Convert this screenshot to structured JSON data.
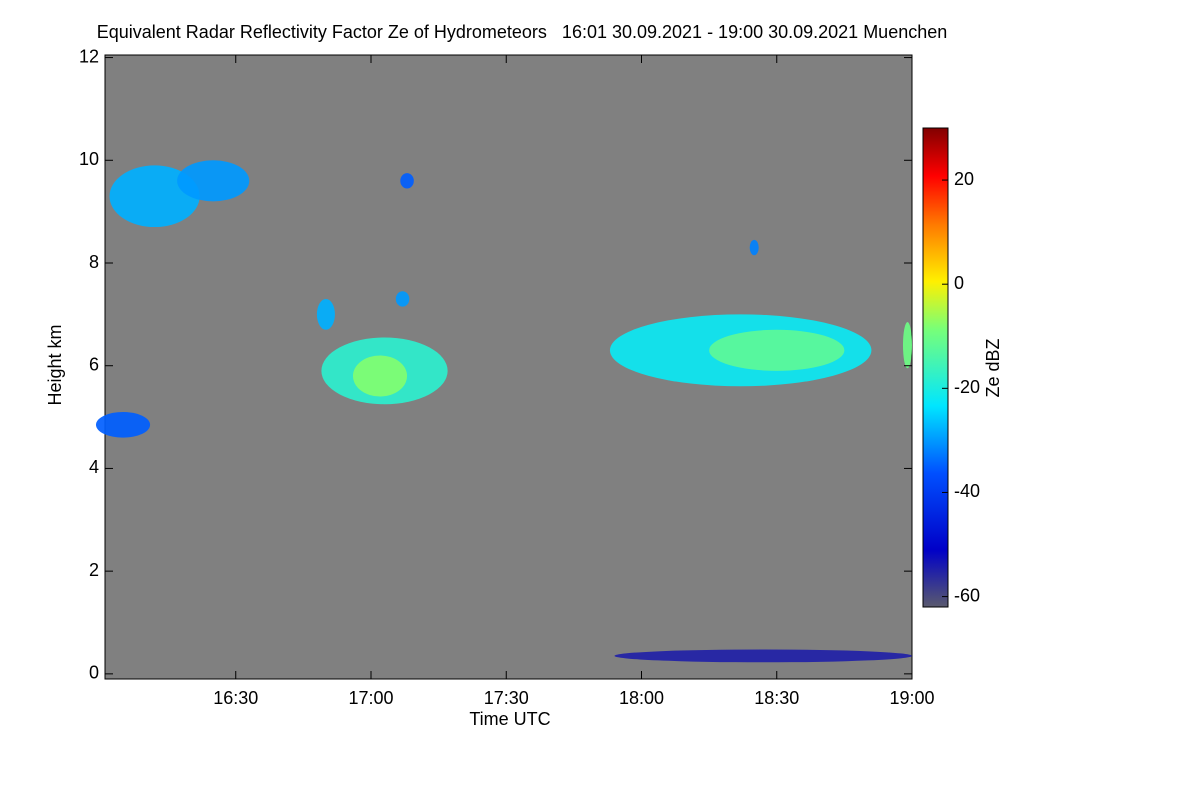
{
  "chart_data": {
    "type": "heatmap",
    "title": "Equivalent Radar Reflectivity Factor Ze of Hydrometeors   16:01 30.09.2021 - 19:00 30.09.2021 Muenchen",
    "xlabel": "Time UTC",
    "ylabel": "Height km",
    "colorbar_label": "Ze dBZ",
    "background": "#808080",
    "xlim": [
      961,
      1140
    ],
    "xticks": [
      {
        "value": 990,
        "label": "16:30"
      },
      {
        "value": 1020,
        "label": "17:00"
      },
      {
        "value": 1050,
        "label": "17:30"
      },
      {
        "value": 1080,
        "label": "18:00"
      },
      {
        "value": 1110,
        "label": "18:30"
      },
      {
        "value": 1140,
        "label": "19:00"
      }
    ],
    "ylim": [
      -0.1,
      12.05
    ],
    "yticks": [
      0,
      2,
      4,
      6,
      8,
      10,
      12
    ],
    "clim": [
      -62,
      30
    ],
    "cticks": [
      20,
      0,
      -20,
      -40,
      -60
    ],
    "cells": [
      {
        "time": 972,
        "height": 9.3,
        "width": 20,
        "depth": 1.2,
        "ze": -28
      },
      {
        "time": 985,
        "height": 9.6,
        "width": 16,
        "depth": 0.8,
        "ze": -30
      },
      {
        "time": 965,
        "height": 4.85,
        "width": 12,
        "depth": 0.5,
        "ze": -35
      },
      {
        "time": 1023,
        "height": 5.9,
        "width": 28,
        "depth": 1.3,
        "ze": -18
      },
      {
        "time": 1022,
        "height": 5.8,
        "width": 12,
        "depth": 0.8,
        "ze": -8
      },
      {
        "time": 1010,
        "height": 7.0,
        "width": 4,
        "depth": 0.6,
        "ze": -28
      },
      {
        "time": 1027,
        "height": 7.3,
        "width": 3,
        "depth": 0.3,
        "ze": -30
      },
      {
        "time": 1028,
        "height": 9.6,
        "width": 3,
        "depth": 0.3,
        "ze": -35
      },
      {
        "time": 1102,
        "height": 6.3,
        "width": 58,
        "depth": 1.4,
        "ze": -22
      },
      {
        "time": 1110,
        "height": 6.3,
        "width": 30,
        "depth": 0.8,
        "ze": -12
      },
      {
        "time": 1105,
        "height": 8.3,
        "width": 2,
        "depth": 0.3,
        "ze": -32
      },
      {
        "time": 1139,
        "height": 6.4,
        "width": 2,
        "depth": 0.9,
        "ze": -10
      },
      {
        "time": 1107,
        "height": 0.35,
        "width": 66,
        "depth": 0.25,
        "ze": -55
      }
    ]
  }
}
